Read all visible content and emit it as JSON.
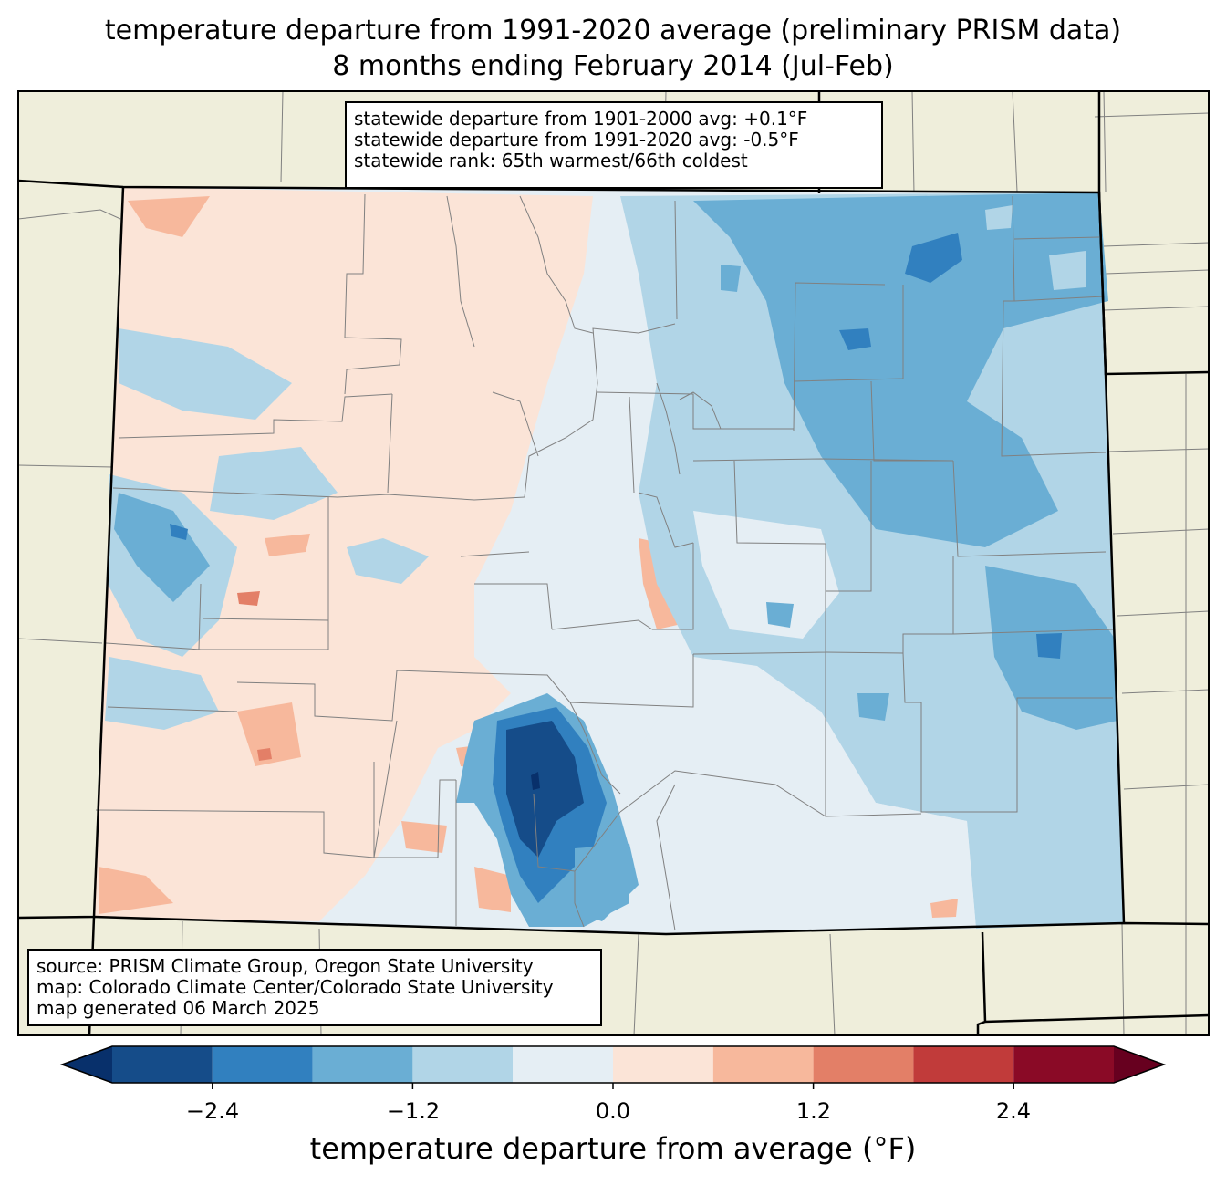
{
  "title": {
    "line1": "temperature departure from 1991-2020 average (preliminary PRISM data)",
    "line2": "8 months ending February 2014 (Jul-Feb)"
  },
  "stats_box": {
    "line1": "statewide departure from 1901-2000 avg: +0.1°F",
    "line2": "statewide departure from 1991-2020 avg: -0.5°F",
    "line3": "statewide rank: 65th warmest/66th coldest"
  },
  "credits_box": {
    "line1": "source: PRISM Climate Group, Oregon State University",
    "line2": "map: Colorado Climate Center/Colorado State University",
    "line3": "map generated 06 March 2025"
  },
  "colorbar": {
    "label": "temperature departure from average (°F)",
    "ticks": [
      "−2.4",
      "−1.2",
      "0.0",
      "1.2",
      "2.4"
    ],
    "levels": [
      -3.0,
      -2.4,
      -1.8,
      -1.2,
      -0.6,
      0.0,
      0.6,
      1.2,
      1.8,
      2.4,
      3.0
    ],
    "colors": [
      "#08306b",
      "#154c89",
      "#3180bf",
      "#6aaed4",
      "#b1d5e7",
      "#e5eef4",
      "#fbe4d7",
      "#f7b89c",
      "#e37f67",
      "#c13b3a",
      "#8a0a26",
      "#67001f"
    ]
  },
  "colors": {
    "land": "#efeedb",
    "county_line": "#808080",
    "state_line": "#000000"
  }
}
